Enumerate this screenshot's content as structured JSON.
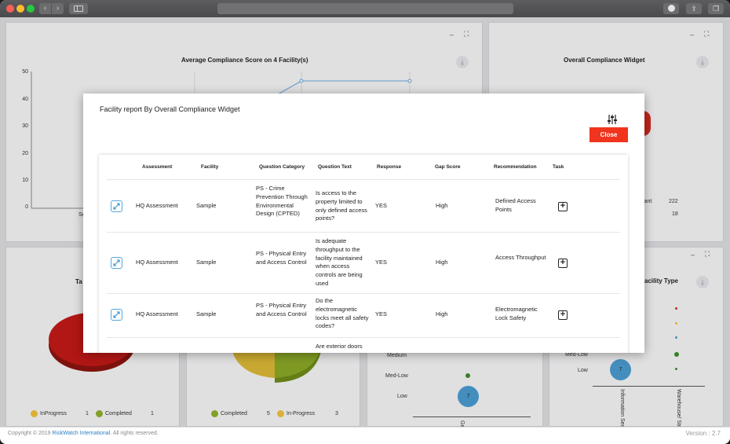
{
  "widgets": {
    "avg_compliance": {
      "title": "Average Compliance Score on 4 Facility(s)",
      "y_ticks": [
        "50",
        "40",
        "30",
        "20",
        "10",
        "0"
      ],
      "x_partial": "Se"
    },
    "overall_compliance": {
      "title": "Overall Compliance Widget",
      "values": [
        {
          "label": "iant",
          "value": "222"
        },
        {
          "label": "",
          "value": "18"
        }
      ]
    },
    "bottom_left": {
      "title_partial": "Ta",
      "legend": [
        {
          "label": "InProgress",
          "count": "1",
          "color": "#f0be3b"
        },
        {
          "label": "Completed",
          "count": "1",
          "color": "#8cae2a"
        }
      ]
    },
    "bottom_mid": {
      "legend": [
        {
          "label": "Completed",
          "count": "5",
          "color": "#8cae2a"
        },
        {
          "label": "In-Progress",
          "count": "3",
          "color": "#f0be3b"
        }
      ]
    },
    "bottom_mid2": {
      "rows": [
        "Medium",
        "Med-Low",
        "Low"
      ],
      "bubble_value": "7",
      "x_partial": "Ge"
    },
    "bottom_right": {
      "title_partial": "acility Type",
      "rows": [
        "Med-Low",
        "Low"
      ],
      "bubble_value": "7",
      "x_labels": [
        "Information Sec",
        "Warehouse/ Sto"
      ]
    }
  },
  "footer": {
    "copyright_prefix": "Copyright © 2019 ",
    "company": "RiskWatch International",
    "copyright_suffix": ". All rights reserved.",
    "version": "Version : 2.7"
  },
  "modal": {
    "title": "Facility report By Overall Compliance Widget",
    "close_label": "Close",
    "columns": [
      "Assessment",
      "Facility",
      "Question Category",
      "Question Text",
      "Response",
      "Gap Score",
      "Recommendation",
      "Task"
    ],
    "rows": [
      {
        "assessment": "HQ Assessment",
        "facility": "Sample",
        "category": "PS - Crime Prevention Through Environmental Design (CPTED)",
        "question": "Is access to the property limited to only defined access points?",
        "response": "YES",
        "gap": "High",
        "recommendation": "Defined Access Points"
      },
      {
        "assessment": "HQ Assessment",
        "facility": "Sample",
        "category": "PS - Physical Entry and Access Control",
        "question": "Is adequate throughput to the facility maintained when access controls are being used",
        "response": "YES",
        "gap": "High",
        "recommendation": "Access Throughput"
      },
      {
        "assessment": "HQ Assessment",
        "facility": "Sample",
        "category": "PS - Physical Entry and Access Control",
        "question": "Do the electromagnetic locks meet all safety codes?",
        "response": "YES",
        "gap": "High",
        "recommendation": "Electromagnetic Lock Safety"
      },
      {
        "question": "Are exterior doors"
      }
    ]
  }
}
